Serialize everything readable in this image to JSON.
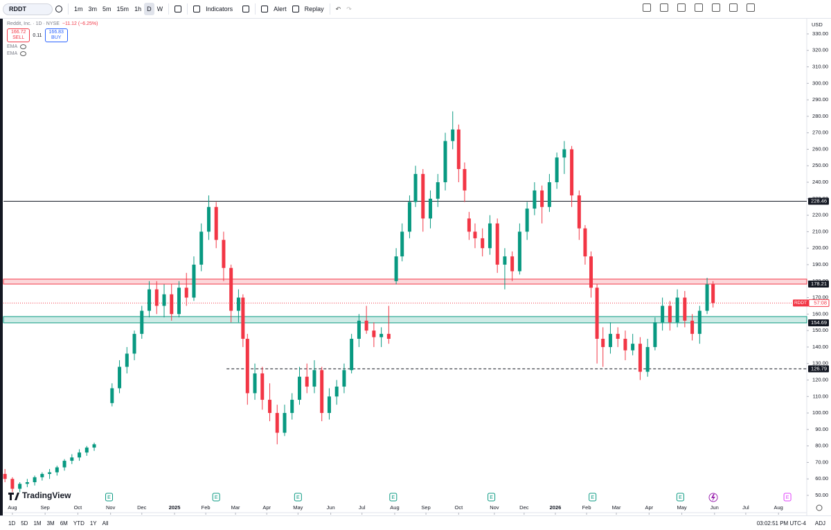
{
  "toolbar": {
    "symbol": "RDDT",
    "intervals": [
      "1m",
      "3m",
      "5m",
      "15m",
      "1h",
      "D",
      "W"
    ],
    "indicators": "Indicators",
    "alert": "Alert",
    "replay": "Replay"
  },
  "legend": {
    "title": "Reddit, Inc. · 1D · NYSE",
    "change": "−11.12 (−6.25%)",
    "sell_price": 166.72,
    "sell": "SELL",
    "spread": 0.11,
    "buy_price": 166.83,
    "buy": "BUY",
    "indicators": [
      "EMA",
      "EMA"
    ]
  },
  "chart_data": {
    "type": "candlestick",
    "currency": "USD",
    "symbol_tag": "RDDT",
    "countdown": "57:08",
    "up_color": "#089981",
    "down_color": "#f23645",
    "x": [
      1,
      6,
      11,
      16,
      21,
      26,
      31,
      36,
      41,
      46,
      51,
      56,
      61,
      73,
      78,
      83,
      88,
      93,
      98,
      103,
      108,
      113,
      118,
      123,
      128,
      133,
      138,
      143,
      148,
      153,
      158,
      161,
      164,
      169,
      174,
      179,
      184,
      189,
      194,
      199,
      204,
      209,
      214,
      219,
      224,
      229,
      234,
      239,
      244,
      249,
      254,
      259,
      264,
      268,
      273,
      277,
      282,
      287,
      292,
      297,
      302,
      306,
      310,
      313,
      317,
      322,
      327,
      332,
      337,
      342,
      347,
      352,
      357,
      362,
      367,
      372,
      377,
      382,
      387,
      391,
      395,
      399,
      403,
      408,
      413,
      418,
      423,
      428,
      433,
      438,
      443,
      448,
      453,
      458,
      463,
      468,
      473,
      477
    ],
    "ohlc": [
      [
        63,
        66,
        58,
        60
      ],
      [
        60,
        61,
        52,
        54
      ],
      [
        54,
        58,
        52,
        57
      ],
      [
        57,
        60,
        55,
        58
      ],
      [
        58,
        62,
        56,
        61
      ],
      [
        61,
        64,
        59,
        63
      ],
      [
        63,
        66,
        60,
        64
      ],
      [
        64,
        68,
        62,
        67
      ],
      [
        67,
        72,
        65,
        71
      ],
      [
        71,
        75,
        69,
        73
      ],
      [
        73,
        78,
        71,
        76
      ],
      [
        76,
        80,
        74,
        79
      ],
      [
        79,
        82,
        77,
        81
      ],
      [
        106,
        118,
        104,
        115
      ],
      [
        115,
        132,
        112,
        128
      ],
      [
        128,
        140,
        124,
        136
      ],
      [
        136,
        150,
        132,
        148
      ],
      [
        148,
        165,
        145,
        162
      ],
      [
        162,
        180,
        158,
        175
      ],
      [
        175,
        180,
        160,
        165
      ],
      [
        165,
        178,
        158,
        172
      ],
      [
        172,
        178,
        156,
        160
      ],
      [
        160,
        180,
        158,
        176
      ],
      [
        176,
        185,
        165,
        170
      ],
      [
        170,
        195,
        168,
        190
      ],
      [
        190,
        215,
        186,
        210
      ],
      [
        210,
        232,
        205,
        225
      ],
      [
        225,
        228,
        200,
        205
      ],
      [
        205,
        210,
        180,
        188
      ],
      [
        188,
        190,
        155,
        162
      ],
      [
        162,
        175,
        155,
        170
      ],
      [
        170,
        172,
        140,
        145
      ],
      [
        145,
        148,
        105,
        112
      ],
      [
        112,
        130,
        108,
        124
      ],
      [
        124,
        128,
        102,
        108
      ],
      [
        108,
        118,
        95,
        100
      ],
      [
        100,
        105,
        81,
        88
      ],
      [
        88,
        105,
        86,
        100
      ],
      [
        100,
        112,
        96,
        108
      ],
      [
        108,
        128,
        105,
        122
      ],
      [
        122,
        130,
        112,
        116
      ],
      [
        116,
        132,
        112,
        126
      ],
      [
        126,
        128,
        95,
        100
      ],
      [
        100,
        115,
        96,
        110
      ],
      [
        110,
        120,
        105,
        116
      ],
      [
        116,
        130,
        112,
        126
      ],
      [
        126,
        148,
        124,
        145
      ],
      [
        145,
        160,
        140,
        156
      ],
      [
        156,
        165,
        148,
        150
      ],
      [
        150,
        155,
        140,
        146
      ],
      [
        146,
        152,
        140,
        148
      ],
      [
        148,
        165,
        142,
        145
      ],
      [
        180,
        200,
        178,
        195
      ],
      [
        195,
        215,
        192,
        210
      ],
      [
        210,
        232,
        206,
        228
      ],
      [
        228,
        250,
        225,
        245
      ],
      [
        245,
        248,
        210,
        218
      ],
      [
        218,
        235,
        212,
        230
      ],
      [
        230,
        245,
        225,
        240
      ],
      [
        240,
        270,
        235,
        265
      ],
      [
        265,
        283,
        260,
        272
      ],
      [
        272,
        275,
        240,
        248
      ],
      [
        248,
        252,
        228,
        235
      ],
      [
        218,
        222,
        205,
        210
      ],
      [
        210,
        215,
        200,
        206
      ],
      [
        206,
        212,
        195,
        200
      ],
      [
        200,
        220,
        196,
        215
      ],
      [
        215,
        218,
        185,
        190
      ],
      [
        190,
        200,
        175,
        195
      ],
      [
        195,
        198,
        180,
        186
      ],
      [
        186,
        215,
        184,
        210
      ],
      [
        210,
        228,
        205,
        224
      ],
      [
        224,
        240,
        220,
        235
      ],
      [
        235,
        238,
        215,
        225
      ],
      [
        225,
        245,
        222,
        240
      ],
      [
        240,
        258,
        236,
        255
      ],
      [
        255,
        265,
        245,
        260
      ],
      [
        260,
        262,
        225,
        232
      ],
      [
        232,
        235,
        205,
        212
      ],
      [
        212,
        214,
        190,
        195
      ],
      [
        195,
        198,
        170,
        176
      ],
      [
        176,
        178,
        130,
        145
      ],
      [
        145,
        152,
        128,
        140
      ],
      [
        140,
        155,
        136,
        148
      ],
      [
        148,
        152,
        140,
        145
      ],
      [
        145,
        150,
        132,
        138
      ],
      [
        138,
        148,
        135,
        142
      ],
      [
        142,
        146,
        120,
        125
      ],
      [
        125,
        145,
        122,
        140
      ],
      [
        140,
        158,
        138,
        155
      ],
      [
        155,
        170,
        150,
        165
      ],
      [
        165,
        168,
        150,
        155
      ],
      [
        155,
        175,
        152,
        170
      ],
      [
        170,
        174,
        152,
        156
      ],
      [
        156,
        160,
        144,
        148
      ],
      [
        148,
        165,
        142,
        162
      ],
      [
        162,
        182,
        160,
        178
      ],
      [
        178,
        180,
        164,
        166.72
      ]
    ],
    "xlim": [
      0,
      540
    ],
    "xticks": [
      {
        "value": 6,
        "label": "Aug"
      },
      {
        "value": 28,
        "label": "Sep"
      },
      {
        "value": 50,
        "label": "Oct"
      },
      {
        "value": 72,
        "label": "Nov"
      },
      {
        "value": 93,
        "label": "Dec"
      },
      {
        "value": 115,
        "label": "2025"
      },
      {
        "value": 136,
        "label": "Feb"
      },
      {
        "value": 156,
        "label": "Mar"
      },
      {
        "value": 177,
        "label": "Apr"
      },
      {
        "value": 198,
        "label": "May"
      },
      {
        "value": 220,
        "label": "Jun"
      },
      {
        "value": 241,
        "label": "Jul"
      },
      {
        "value": 263,
        "label": "Aug"
      },
      {
        "value": 284,
        "label": "Sep"
      },
      {
        "value": 306,
        "label": "Oct"
      },
      {
        "value": 330,
        "label": "Nov"
      },
      {
        "value": 350,
        "label": "Dec"
      },
      {
        "value": 371,
        "label": "2026"
      },
      {
        "value": 392,
        "label": "Feb"
      },
      {
        "value": 412,
        "label": "Mar"
      },
      {
        "value": 434,
        "label": "Apr"
      },
      {
        "value": 456,
        "label": "May"
      },
      {
        "value": 478,
        "label": "Jun"
      },
      {
        "value": 499,
        "label": "Jul"
      },
      {
        "value": 521,
        "label": "Aug"
      }
    ],
    "ylim": [
      39.5,
      338.8
    ],
    "yticks": [
      {
        "value": 50,
        "label": "50.00"
      },
      {
        "value": 60,
        "label": "60.00"
      },
      {
        "value": 70,
        "label": "70.00"
      },
      {
        "value": 80,
        "label": "80.00"
      },
      {
        "value": 90,
        "label": "90.00"
      },
      {
        "value": 100,
        "label": "100.00"
      },
      {
        "value": 110,
        "label": "110.00"
      },
      {
        "value": 120,
        "label": "120.00"
      },
      {
        "value": 130,
        "label": "130.00"
      },
      {
        "value": 140,
        "label": "140.00"
      },
      {
        "value": 150,
        "label": "150.00"
      },
      {
        "value": 160,
        "label": "160.00"
      },
      {
        "value": 170,
        "label": "170.00"
      },
      {
        "value": 180,
        "label": "180.00"
      },
      {
        "value": 190,
        "label": "190.00"
      },
      {
        "value": 200,
        "label": "200.00"
      },
      {
        "value": 210,
        "label": "210.00"
      },
      {
        "value": 220,
        "label": "220.00"
      },
      {
        "value": 230,
        "label": "230.00"
      },
      {
        "value": 240,
        "label": "240.00"
      },
      {
        "value": 250,
        "label": "250.00"
      },
      {
        "value": 260,
        "label": "260.00"
      },
      {
        "value": 270,
        "label": "270.00"
      },
      {
        "value": 280,
        "label": "280.00"
      },
      {
        "value": 290,
        "label": "290.00"
      },
      {
        "value": 300,
        "label": "300.00"
      },
      {
        "value": 310,
        "label": "310.00"
      },
      {
        "value": 320,
        "label": "320.00"
      },
      {
        "value": 330,
        "label": "330.00"
      }
    ],
    "levels": [
      {
        "value": 228.46,
        "kind": "line",
        "color": "#131722"
      },
      {
        "value": 178.21,
        "high": 181.2,
        "kind": "zone",
        "color": "#f23645"
      },
      {
        "value": 154.69,
        "high": 158.5,
        "kind": "zone",
        "color": "#089981"
      },
      {
        "value": 126.79,
        "kind": "dashed",
        "color": "#131722",
        "from": 150
      }
    ],
    "events": [
      {
        "label": "E",
        "x": 71,
        "color": "#089981"
      },
      {
        "label": "E",
        "x": 143,
        "color": "#089981"
      },
      {
        "label": "E",
        "x": 198,
        "color": "#089981"
      },
      {
        "label": "E",
        "x": 262,
        "color": "#089981"
      },
      {
        "label": "E",
        "x": 328,
        "color": "#089981"
      },
      {
        "label": "E",
        "x": 396,
        "color": "#089981"
      },
      {
        "label": "E",
        "x": 455,
        "color": "#089981"
      },
      {
        "label": "E",
        "x": 527,
        "color": "#e040fb"
      }
    ]
  },
  "brand": "TradingView",
  "footer": {
    "ranges": [
      "1D",
      "5D",
      "1M",
      "3M",
      "6M",
      "YTD",
      "1Y",
      "All"
    ],
    "time": "03:02:51 PM UTC-4",
    "adj": "ADJ"
  }
}
